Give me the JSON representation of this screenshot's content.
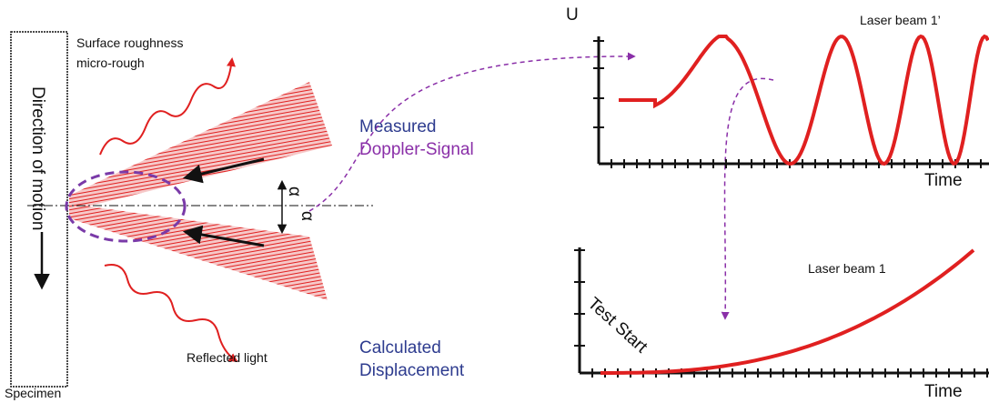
{
  "specimen": {
    "surface_label_1": "Surface roughness",
    "surface_label_2": "micro-rough",
    "motion_label": "Direction of motion",
    "name": "Specimen",
    "reflected_label": "Reflected light",
    "angle_1": "α",
    "angle_2": "α"
  },
  "signal": {
    "label_1": "Measured",
    "label_2": "Doppler-Signal",
    "y_axis_label": "U",
    "beam_label": "Laser beam 1’",
    "x_axis_label": "Time"
  },
  "displacement": {
    "label_1": "Calculated",
    "label_2": "Displacement",
    "start_label": "Test Start",
    "beam_label": "Laser beam 1",
    "x_axis_label": "Time"
  }
}
